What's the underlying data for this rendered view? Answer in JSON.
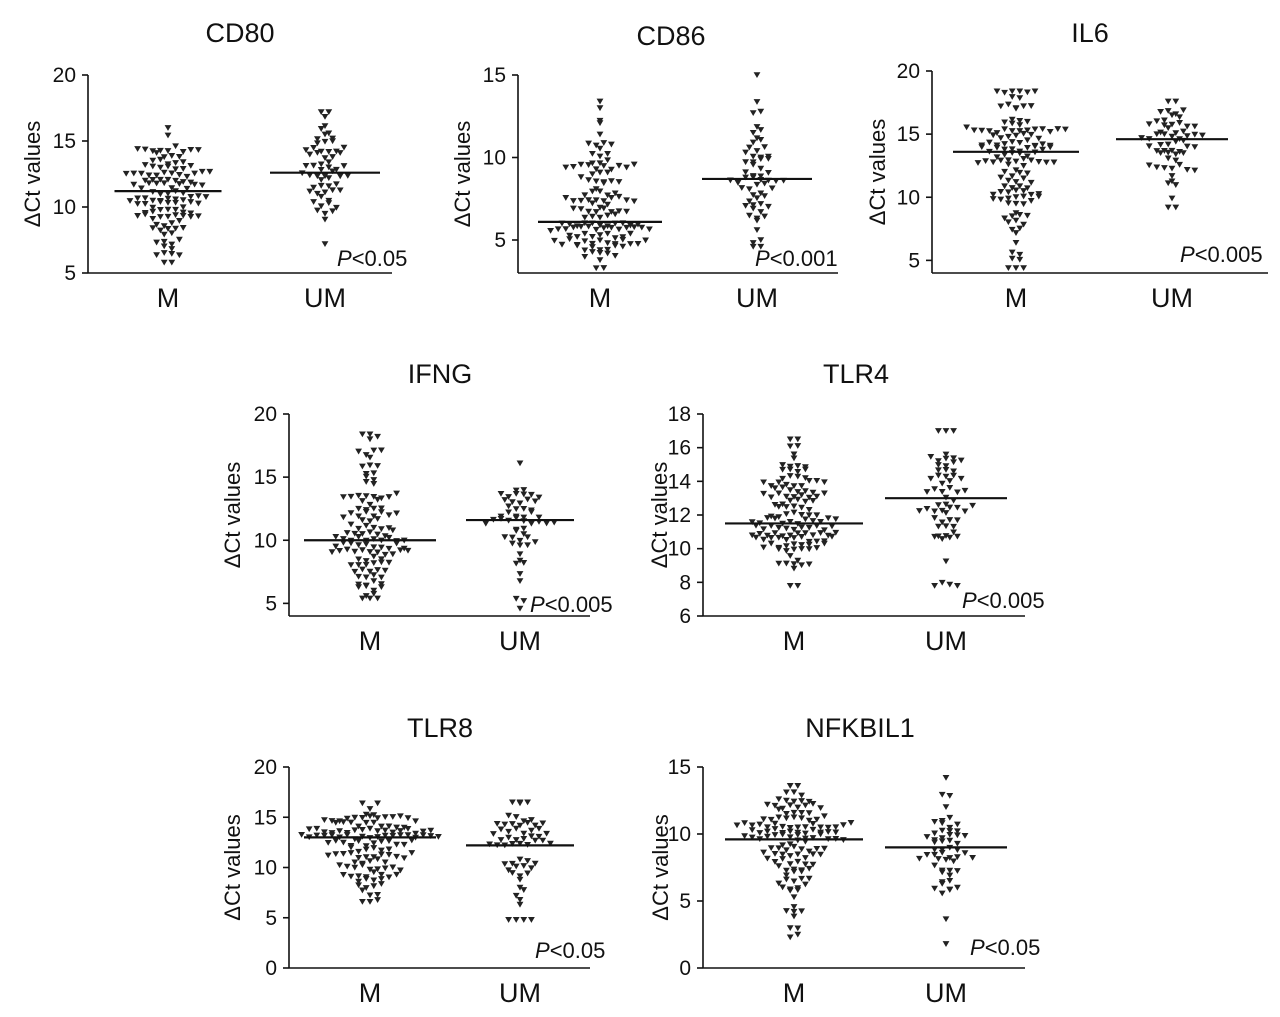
{
  "chart_data": [
    {
      "type": "scatter",
      "title": "CD80",
      "ylabel": "ΔCt values",
      "categories": [
        "M",
        "UM"
      ],
      "ylim": [
        5,
        20
      ],
      "yticks": [
        "5",
        "10",
        "15",
        "20"
      ],
      "medians": [
        11.2,
        12.6
      ],
      "p_prefix": "P",
      "p_suffix": "<0.05",
      "n": [
        120,
        60
      ],
      "ranges": [
        [
          5.8,
          16.0
        ],
        [
          7.2,
          17.2
        ]
      ]
    },
    {
      "type": "scatter",
      "title": "CD86",
      "ylabel": "ΔCt values",
      "categories": [
        "M",
        "UM"
      ],
      "ylim": [
        3,
        15
      ],
      "yticks": [
        "5",
        "10",
        "15"
      ],
      "medians": [
        6.1,
        8.7
      ],
      "p_prefix": "P",
      "p_suffix": "<0.001",
      "n": [
        130,
        60
      ],
      "ranges": [
        [
          3.3,
          13.4
        ],
        [
          4.6,
          15.0
        ]
      ]
    },
    {
      "type": "scatter",
      "title": "IL6",
      "ylabel": "ΔCt values",
      "categories": [
        "M",
        "UM"
      ],
      "ylim": [
        4,
        20
      ],
      "yticks": [
        "5",
        "10",
        "15",
        "20"
      ],
      "medians": [
        13.6,
        14.6
      ],
      "p_prefix": "P",
      "p_suffix": "<0.005",
      "n": [
        130,
        60
      ],
      "ranges": [
        [
          4.4,
          18.4
        ],
        [
          9.2,
          17.6
        ]
      ]
    },
    {
      "type": "scatter",
      "title": "IFNG",
      "ylabel": "ΔCt values",
      "categories": [
        "M",
        "UM"
      ],
      "ylim": [
        4,
        20
      ],
      "yticks": [
        "5",
        "10",
        "15",
        "20"
      ],
      "medians": [
        10.0,
        11.6
      ],
      "p_prefix": "P",
      "p_suffix": "<0.005",
      "n": [
        120,
        55
      ],
      "ranges": [
        [
          5.4,
          18.4
        ],
        [
          4.6,
          16.1
        ]
      ]
    },
    {
      "type": "scatter",
      "title": "TLR4",
      "ylabel": "ΔCt values",
      "categories": [
        "M",
        "UM"
      ],
      "ylim": [
        6,
        18
      ],
      "yticks": [
        "6",
        "8",
        "10",
        "12",
        "14",
        "16",
        "18"
      ],
      "medians": [
        11.5,
        13.0
      ],
      "p_prefix": "P",
      "p_suffix": "<0.005",
      "n": [
        130,
        60
      ],
      "ranges": [
        [
          7.8,
          16.5
        ],
        [
          7.8,
          17.0
        ]
      ]
    },
    {
      "type": "scatter",
      "title": "TLR8",
      "ylabel": "ΔCt values",
      "categories": [
        "M",
        "UM"
      ],
      "ylim": [
        0,
        20
      ],
      "yticks": [
        "0",
        "5",
        "10",
        "15",
        "20"
      ],
      "medians": [
        13.0,
        12.2
      ],
      "p_prefix": "P",
      "p_suffix": "<0.05",
      "n": [
        130,
        60
      ],
      "ranges": [
        [
          6.6,
          16.4
        ],
        [
          4.8,
          16.5
        ]
      ]
    },
    {
      "type": "scatter",
      "title": "NFKBIL1",
      "ylabel": "ΔCt values",
      "categories": [
        "M",
        "UM"
      ],
      "ylim": [
        0,
        15
      ],
      "yticks": [
        "0",
        "5",
        "10",
        "15"
      ],
      "medians": [
        9.6,
        9.0
      ],
      "p_prefix": "P",
      "p_suffix": "<0.05",
      "n": [
        130,
        55
      ],
      "ranges": [
        [
          2.3,
          13.6
        ],
        [
          1.8,
          14.2
        ]
      ]
    }
  ]
}
